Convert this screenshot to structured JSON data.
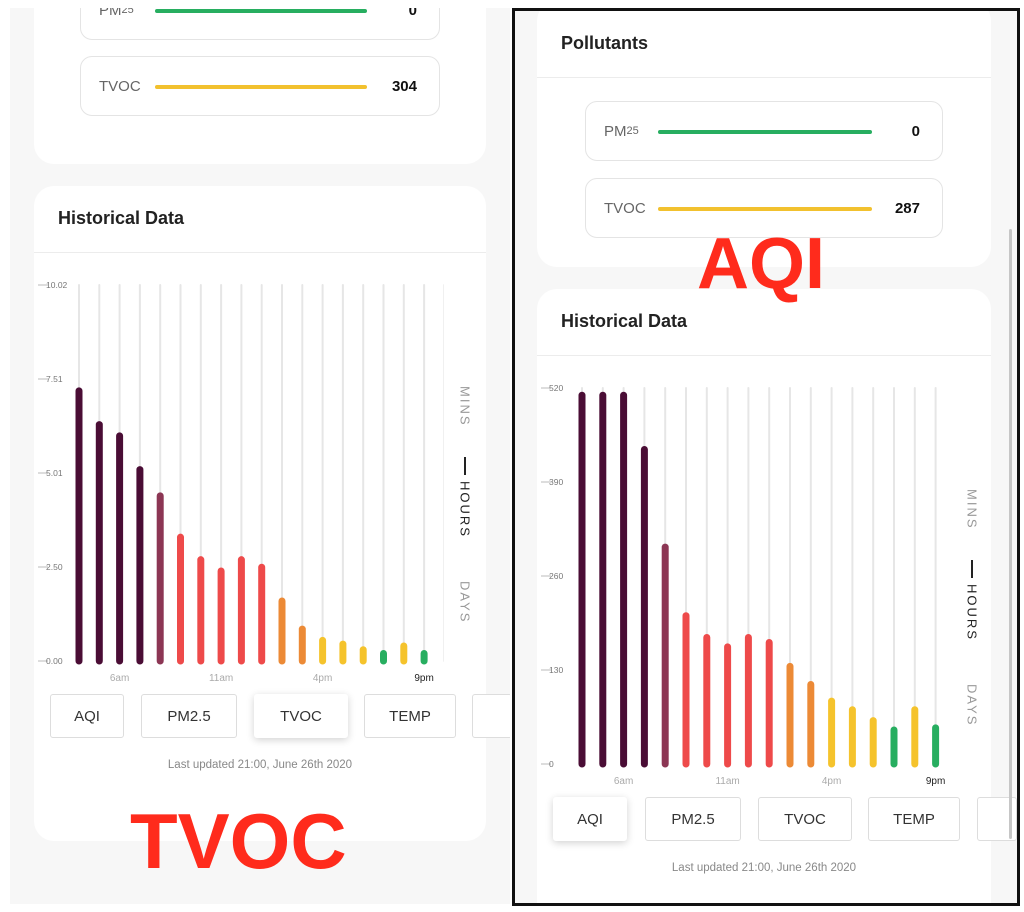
{
  "left": {
    "pollutants": [
      {
        "label": "PM",
        "sub": "25",
        "value": "0",
        "color": "#27ae60"
      },
      {
        "label": "TVOC",
        "sub": "",
        "value": "304",
        "color": "#f2c12e"
      }
    ],
    "historical_title": "Historical Data",
    "toggle": {
      "mins": "MINS",
      "hours": "HOURS",
      "days": "DAYS",
      "selected": "hours"
    },
    "tabs": [
      "AQI",
      "PM2.5",
      "TVOC",
      "TEMP"
    ],
    "active_tab": "TVOC",
    "updated": "Last updated 21:00, June 26th 2020",
    "overlay_label": "TVOC"
  },
  "right": {
    "pollutants_title": "Pollutants",
    "pollutants": [
      {
        "label": "PM",
        "sub": "25",
        "value": "0",
        "color": "#27ae60"
      },
      {
        "label": "TVOC",
        "sub": "",
        "value": "287",
        "color": "#f2c12e"
      }
    ],
    "historical_title": "Historical Data",
    "toggle": {
      "mins": "MINS",
      "hours": "HOURS",
      "days": "DAYS",
      "selected": "hours"
    },
    "tabs": [
      "AQI",
      "PM2.5",
      "TVOC",
      "TEMP"
    ],
    "active_tab": "AQI",
    "updated": "Last updated 21:00, June 26th 2020",
    "overlay_label": "AQI"
  },
  "chart_data": [
    {
      "type": "bar",
      "metric": "TVOC",
      "y_ticks": [
        "0.00",
        "2.50",
        "5.01",
        "7.51",
        "10.02"
      ],
      "ylim": [
        0,
        10.02
      ],
      "x_labels": [
        "6am",
        "11am",
        "4pm",
        "9pm"
      ],
      "x_label_indices": [
        2,
        7,
        12,
        17
      ],
      "values": [
        7.2,
        6.3,
        6.0,
        5.1,
        4.4,
        3.3,
        2.7,
        2.4,
        2.7,
        2.5,
        1.6,
        0.85,
        0.55,
        0.45,
        0.3,
        0.2,
        0.4,
        0.2,
        null,
        null
      ],
      "colors": [
        "#4a0d35",
        "#4a0d35",
        "#4a0d35",
        "#4a0d35",
        "#8c3654",
        "#ee4a4a",
        "#ee4a4a",
        "#ee4a4a",
        "#ee4a4a",
        "#ee4a4a",
        "#ec8a36",
        "#ec8a36",
        "#f5c32c",
        "#f5c32c",
        "#f5c32c",
        "#27ae60",
        "#f5c32c",
        "#27ae60",
        null,
        null
      ]
    },
    {
      "type": "bar",
      "metric": "AQI",
      "y_ticks": [
        "0",
        "130",
        "260",
        "390",
        "520"
      ],
      "ylim": [
        0,
        520
      ],
      "x_labels": [
        "6am",
        "11am",
        "4pm",
        "9pm"
      ],
      "x_label_indices": [
        2,
        7,
        12,
        17
      ],
      "values": [
        510,
        510,
        510,
        435,
        300,
        205,
        175,
        162,
        175,
        168,
        135,
        110,
        87,
        75,
        60,
        47,
        75,
        50,
        null,
        null
      ],
      "colors": [
        "#4a0d35",
        "#4a0d35",
        "#4a0d35",
        "#4a0d35",
        "#8c3654",
        "#ee4a4a",
        "#ee4a4a",
        "#ee4a4a",
        "#ee4a4a",
        "#ee4a4a",
        "#ec8a36",
        "#ec8a36",
        "#f5c32c",
        "#f5c32c",
        "#f5c32c",
        "#27ae60",
        "#f5c32c",
        "#27ae60",
        null,
        null
      ]
    }
  ]
}
